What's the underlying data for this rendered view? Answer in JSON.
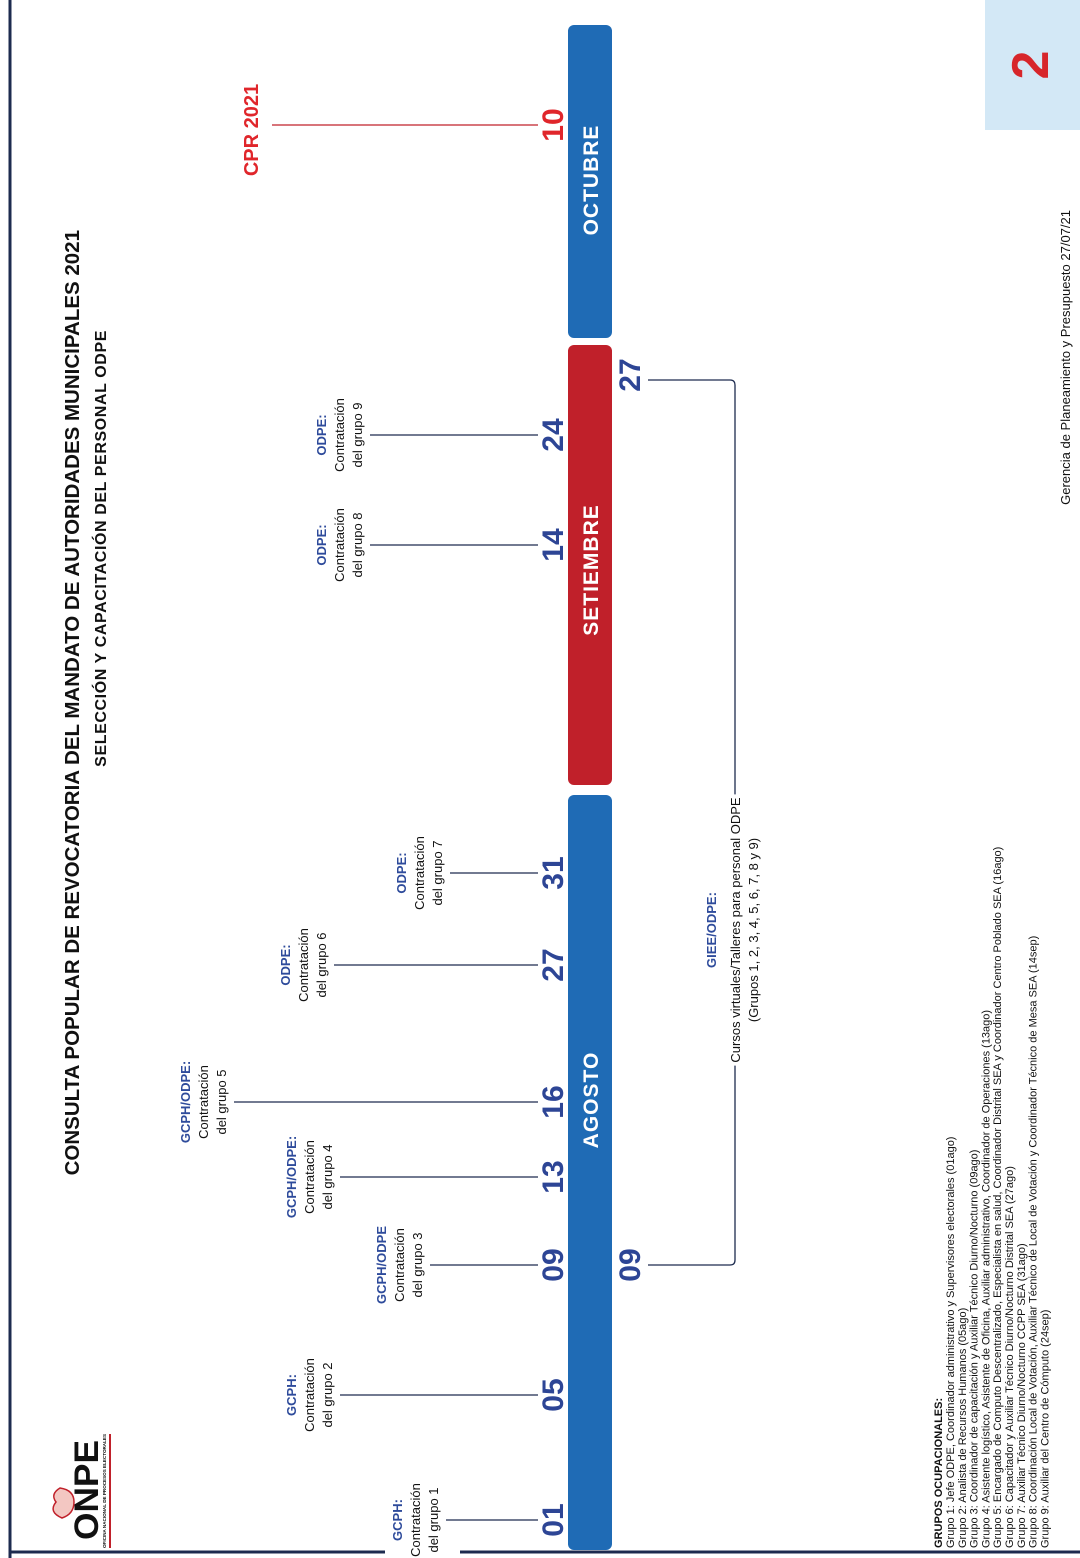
{
  "header": {
    "title": "CONSULTA POPULAR DE REVOCATORIA DEL MANDATO DE AUTORIDADES MUNICIPALES 2021",
    "subtitle": "SELECCIÓN Y CAPACITACIÓN DEL PERSONAL ODPE",
    "badge": "2"
  },
  "logo": {
    "name": "ONPE",
    "tagline": "OFICINA NACIONAL DE PROCESOS ELECTORALES"
  },
  "months": [
    {
      "name": "AGOSTO",
      "color": "#1f6bb5"
    },
    {
      "name": "SETIEMBRE",
      "color": "#c0202a"
    },
    {
      "name": "OCTUBRE",
      "color": "#1f6bb5"
    }
  ],
  "dates": [
    "01",
    "05",
    "09",
    "13",
    "16",
    "27",
    "31",
    "14",
    "24",
    "10"
  ],
  "events": [
    {
      "org": "GCPH:",
      "lines": [
        "Contratación",
        "del grupo 1"
      ]
    },
    {
      "org": "GCPH:",
      "lines": [
        "Contratación",
        "del grupo 2"
      ]
    },
    {
      "org": "GCPH/ODPE",
      "lines": [
        "Contratación",
        "del grupo 3"
      ]
    },
    {
      "org": "GCPH/ODPE:",
      "lines": [
        "Contratación",
        "del grupo 4"
      ]
    },
    {
      "org": "GCPH/ODPE:",
      "lines": [
        "Contratación",
        "del grupo 5"
      ]
    },
    {
      "org": "ODPE:",
      "lines": [
        "Contratación",
        "del grupo 6"
      ]
    },
    {
      "org": "ODPE:",
      "lines": [
        "Contratación",
        "del grupo 7"
      ]
    },
    {
      "org": "ODPE:",
      "lines": [
        "Contratación",
        "del grupo 8"
      ]
    },
    {
      "org": "ODPE:",
      "lines": [
        "Contratación",
        "del grupo 9"
      ]
    }
  ],
  "milestone": "CPR 2021",
  "course": {
    "start": "09",
    "end": "27",
    "org": "GIEE/ODPE:",
    "text": "Cursos virtuales/Talleres para personal ODPE",
    "groups": "(Grupos 1, 2, 3, 4, 5, 6, 7, 8 y 9)"
  },
  "footer": {
    "heading": "GRUPOS OCUPACIONALES:",
    "groups": [
      "Grupo 1: Jefe ODPE, Coordinador administrativo y Supervisores electorales (01ago)",
      "Grupo 2: Analista de Recursos Humanos (05ago)",
      "Grupo 3: Coordinador de capacitación y Auxiliar Técnico Diurno/Nocturno (09ago)",
      "Grupo 4: Asistente logístico, Asistente de Oficina, Auxiliar administrativo, Coordinador de Operaciones (13ago)",
      "Grupo 5: Encargado de Computo Descentralizado, Especialista en salud, Coordinador Distrital SEA y Coordinador Centro Poblado SEA (16ago)",
      "Grupo 6: Capacitador y Auxiliar Técnico Diurno/Nocturno Distrital SEA (27ago)",
      "Grupo 7: Auxiliar Técnico Diurno/Nocturno CCPP SEA (31ago)",
      "Grupo 8: Coordinación  Local de Votación, Auxiliar Técnico de Local de Votación y Coordinador Técnico de Mesa SEA (14sep)",
      "Grupo 9: Auxiliar del Centro de Cómputo (24sep)"
    ],
    "note": "Gerencia de Planeamiento y Presupuesto 27/07/21"
  }
}
